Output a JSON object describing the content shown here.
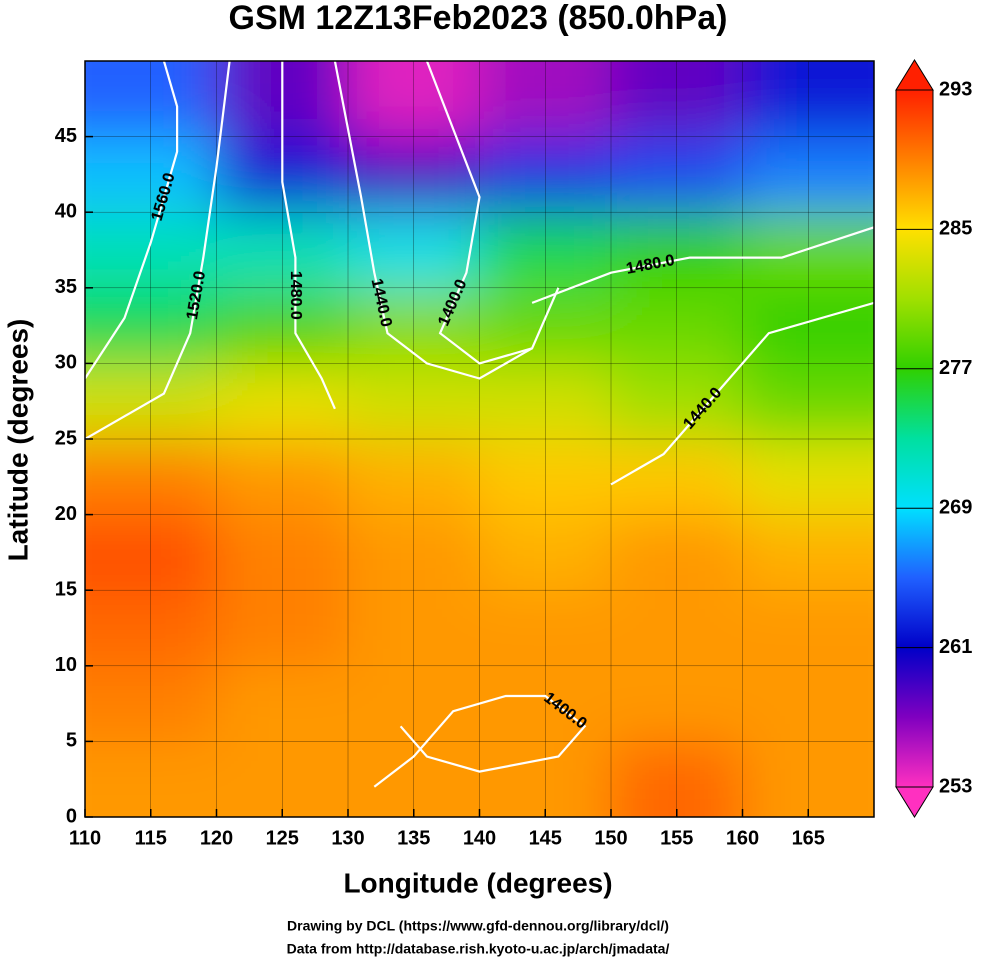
{
  "chart_data": {
    "type": "field",
    "title": "GSM 12Z13Feb2023 (850.0hPa)",
    "x_label": "Longitude (degrees)",
    "y_label": "Latitude  (degrees)",
    "xlim": [
      110,
      170
    ],
    "ylim": [
      0,
      50
    ],
    "xticks": [
      110,
      115,
      120,
      125,
      130,
      135,
      140,
      145,
      150,
      155,
      160,
      165
    ],
    "yticks": [
      0,
      5,
      10,
      15,
      20,
      25,
      30,
      35,
      40,
      45
    ],
    "grid": true,
    "field": {
      "lon_edges": [
        110,
        120,
        130,
        140,
        150,
        160,
        170
      ],
      "lat_edges": [
        0,
        5,
        10,
        15,
        20,
        25,
        30,
        35,
        40,
        45,
        50
      ],
      "values": [
        [
          288,
          288,
          288,
          288,
          290,
          288
        ],
        [
          289,
          288,
          288,
          288,
          288,
          288
        ],
        [
          290,
          289,
          288,
          288,
          288,
          288
        ],
        [
          291,
          289,
          288,
          287,
          288,
          287
        ],
        [
          289,
          288,
          287,
          286,
          286,
          284
        ],
        [
          283,
          284,
          283,
          283,
          281,
          279
        ],
        [
          275,
          278,
          280,
          279,
          279,
          277
        ],
        [
          272,
          272,
          270,
          275,
          277,
          279
        ],
        [
          268,
          262,
          259,
          263,
          264,
          266
        ],
        [
          265,
          258,
          254,
          256,
          258,
          262
        ]
      ]
    },
    "colorbar": {
      "lim": [
        253,
        293
      ],
      "ticks": [
        253,
        261,
        269,
        277,
        285,
        293
      ],
      "colors": [
        "#ff30c0",
        "#8000c0",
        "#0000c8",
        "#2060ff",
        "#00e0ff",
        "#00e0a0",
        "#30d000",
        "#a0e000",
        "#ffe000",
        "#ff8000",
        "#ff2000"
      ]
    },
    "contours": [
      {
        "label": "1560.0",
        "lon": [
          116,
          117,
          117,
          115,
          113,
          110
        ],
        "lat": [
          50,
          47,
          44,
          38,
          33,
          29
        ]
      },
      {
        "label": "1520.0",
        "lon": [
          121,
          120,
          119,
          118,
          116,
          110
        ],
        "lat": [
          50,
          43,
          37,
          32,
          28,
          25
        ]
      },
      {
        "label": "1480.0",
        "lon": [
          125,
          125,
          126,
          126,
          128,
          129
        ],
        "lat": [
          50,
          42,
          37,
          32,
          29,
          27
        ]
      },
      {
        "label": "1440.0",
        "lon": [
          129,
          131,
          132,
          133,
          136,
          140,
          144
        ],
        "lat": [
          50,
          41,
          36,
          32,
          30,
          29,
          31
        ]
      },
      {
        "label": "1400.0",
        "lon": [
          136,
          140,
          139,
          137,
          140,
          144,
          146
        ],
        "lat": [
          50,
          41,
          36,
          32,
          30,
          31,
          35
        ]
      },
      {
        "label": "1480.0",
        "lon": [
          144,
          150,
          156,
          163,
          170
        ],
        "lat": [
          34,
          36,
          37,
          37,
          39
        ]
      },
      {
        "label": "1440.0",
        "lon": [
          150,
          154,
          156,
          158,
          162,
          170
        ],
        "lat": [
          22,
          24,
          26,
          28,
          32,
          34
        ]
      },
      {
        "label": "1400.0",
        "lon": [
          132,
          135,
          138,
          142,
          145,
          148,
          146,
          140,
          136,
          134
        ],
        "lat": [
          2,
          4,
          7,
          8,
          8,
          6,
          4,
          3,
          4,
          6
        ]
      }
    ],
    "credits": [
      "Drawing by DCL (https://www.gfd-dennou.org/library/dcl/)",
      "Data from http://database.rish.kyoto-u.ac.jp/arch/jmadata/"
    ]
  }
}
